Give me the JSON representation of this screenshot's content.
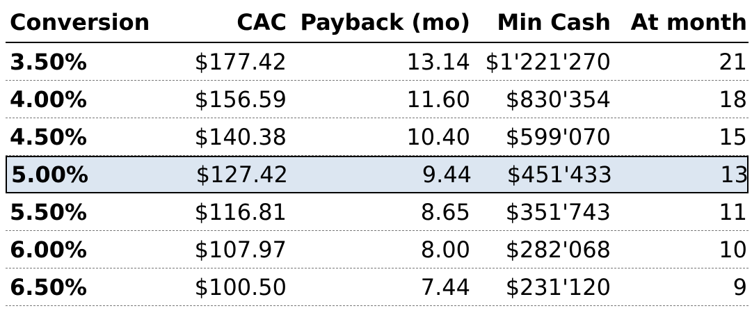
{
  "table": {
    "headers": [
      "Conversion",
      "CAC",
      "Payback (mo)",
      "Min Cash",
      "At month"
    ],
    "highlight_color": "#dce6f1",
    "highlighted_row_index": 3,
    "rows": [
      {
        "conversion": "3.50%",
        "cac": "$177.42",
        "payback": "13.14",
        "min_cash": "$1'221'270",
        "at_month": "21"
      },
      {
        "conversion": "4.00%",
        "cac": "$156.59",
        "payback": "11.60",
        "min_cash": "$830'354",
        "at_month": "18"
      },
      {
        "conversion": "4.50%",
        "cac": "$140.38",
        "payback": "10.40",
        "min_cash": "$599'070",
        "at_month": "15"
      },
      {
        "conversion": "5.00%",
        "cac": "$127.42",
        "payback": "9.44",
        "min_cash": "$451'433",
        "at_month": "13"
      },
      {
        "conversion": "5.50%",
        "cac": "$116.81",
        "payback": "8.65",
        "min_cash": "$351'743",
        "at_month": "11"
      },
      {
        "conversion": "6.00%",
        "cac": "$107.97",
        "payback": "8.00",
        "min_cash": "$282'068",
        "at_month": "10"
      },
      {
        "conversion": "6.50%",
        "cac": "$100.50",
        "payback": "7.44",
        "min_cash": "$231'120",
        "at_month": "9"
      }
    ]
  }
}
